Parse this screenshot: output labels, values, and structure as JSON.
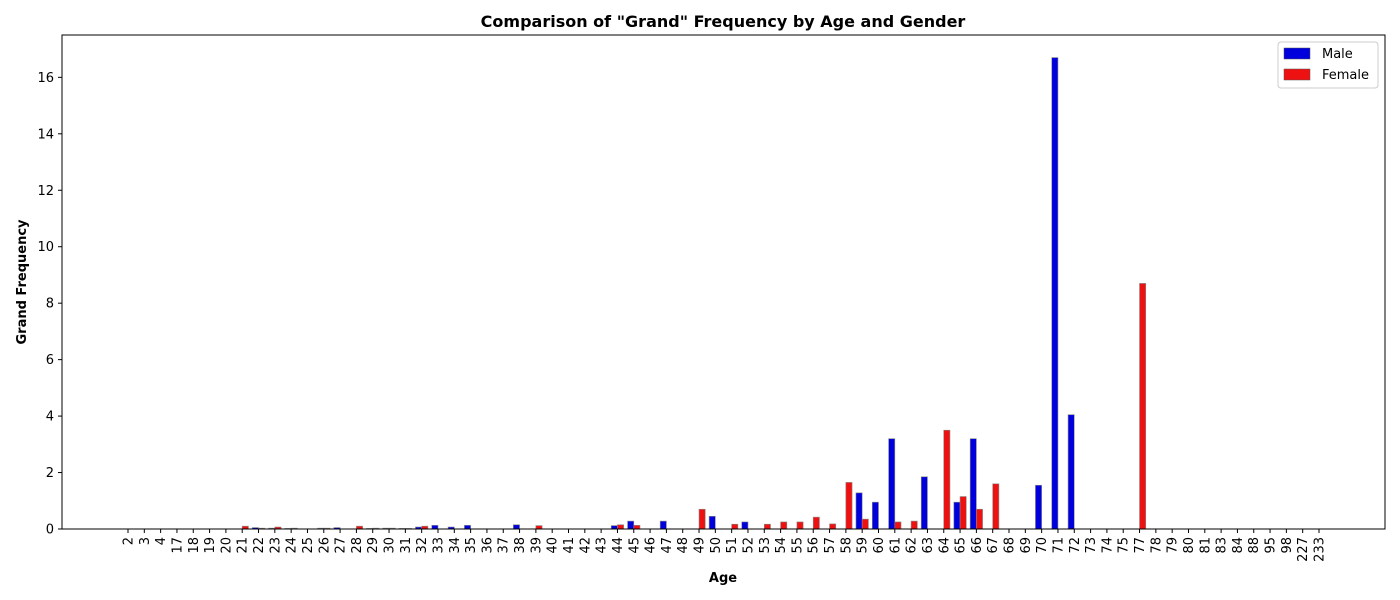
{
  "chart_data": {
    "type": "bar",
    "title": "Comparison of \"Grand\" Frequency by Age and Gender",
    "xlabel": "Age",
    "ylabel": "Grand Frequency",
    "ylim": [
      0,
      17.5
    ],
    "yticks": [
      0,
      2,
      4,
      6,
      8,
      10,
      12,
      14,
      16
    ],
    "grid": false,
    "legend_position": "top-right",
    "categories": [
      "2",
      "3",
      "4",
      "17",
      "18",
      "19",
      "20",
      "21",
      "22",
      "23",
      "24",
      "25",
      "26",
      "27",
      "28",
      "29",
      "30",
      "31",
      "32",
      "33",
      "34",
      "35",
      "36",
      "37",
      "38",
      "39",
      "40",
      "41",
      "42",
      "43",
      "44",
      "45",
      "46",
      "47",
      "48",
      "49",
      "50",
      "51",
      "52",
      "53",
      "54",
      "55",
      "56",
      "57",
      "58",
      "59",
      "60",
      "61",
      "62",
      "63",
      "64",
      "65",
      "66",
      "67",
      "68",
      "69",
      "70",
      "71",
      "72",
      "73",
      "74",
      "75",
      "77",
      "78",
      "79",
      "80",
      "81",
      "83",
      "84",
      "88",
      "95",
      "98",
      "227",
      "233"
    ],
    "series": [
      {
        "name": "Male",
        "color": "#0000dd",
        "values": [
          0,
          0,
          0,
          0,
          0,
          0,
          0,
          0,
          0.05,
          0.03,
          0.02,
          0,
          0.03,
          0.05,
          0,
          0.02,
          0.03,
          0.02,
          0.07,
          0.13,
          0.07,
          0.13,
          0,
          0,
          0.15,
          0,
          0,
          0,
          0,
          0,
          0.12,
          0.28,
          0,
          0.28,
          0,
          0,
          0.45,
          0,
          0.25,
          0,
          0,
          0,
          0,
          0,
          0,
          1.28,
          0.95,
          3.2,
          0,
          1.85,
          0,
          0.95,
          3.2,
          0,
          0,
          0,
          1.55,
          16.7,
          4.05,
          0,
          0,
          0,
          0,
          0,
          0,
          0,
          0,
          0,
          0,
          0,
          0,
          0,
          0,
          0
        ]
      },
      {
        "name": "Female",
        "color": "#ee1111",
        "values": [
          0,
          0,
          0,
          0,
          0,
          0,
          0,
          0.1,
          0.03,
          0.07,
          0.03,
          0,
          0.03,
          0,
          0.1,
          0.03,
          0.03,
          0.02,
          0.1,
          0,
          0,
          0,
          0,
          0,
          0,
          0.12,
          0,
          0,
          0,
          0,
          0.15,
          0.13,
          0,
          0,
          0,
          0.7,
          0,
          0.17,
          0,
          0.17,
          0.25,
          0.25,
          0.42,
          0.18,
          1.65,
          0.35,
          0,
          0.25,
          0.28,
          0,
          3.5,
          1.15,
          0.7,
          1.6,
          0,
          0,
          0,
          0,
          0,
          0,
          0,
          0,
          8.7,
          0,
          0,
          0,
          0,
          0,
          0,
          0,
          0,
          0,
          0,
          0
        ]
      }
    ]
  }
}
